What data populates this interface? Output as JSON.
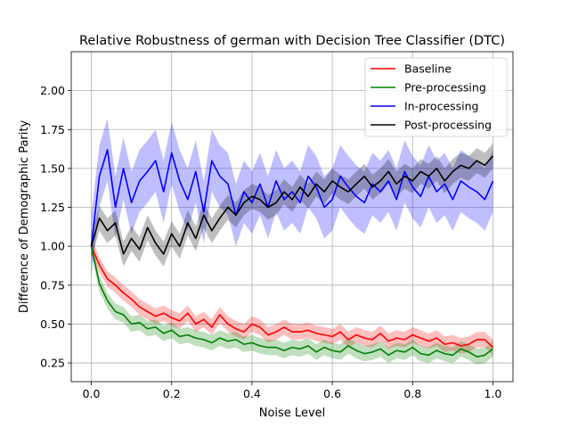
{
  "chart_data": {
    "type": "line",
    "title": "Relative Robustness of german with Decision Tree Classifier (DTC)",
    "xlabel": "Noise Level",
    "ylabel": "Difference of Demographic Parity",
    "xlim": [
      -0.05,
      1.05
    ],
    "ylim": [
      0.13,
      2.25
    ],
    "xticks": [
      0.0,
      0.2,
      0.4,
      0.6,
      0.8,
      1.0
    ],
    "xtick_labels": [
      "0.0",
      "0.2",
      "0.4",
      "0.6",
      "0.8",
      "1.0"
    ],
    "yticks": [
      0.25,
      0.5,
      0.75,
      1.0,
      1.25,
      1.5,
      1.75,
      2.0
    ],
    "ytick_labels": [
      "0.25",
      "0.50",
      "0.75",
      "1.00",
      "1.25",
      "1.50",
      "1.75",
      "2.00"
    ],
    "grid": true,
    "legend_position": "top-right",
    "x": [
      0.0,
      0.02,
      0.04,
      0.06,
      0.08,
      0.1,
      0.12,
      0.14,
      0.16,
      0.18,
      0.2,
      0.22,
      0.24,
      0.26,
      0.28,
      0.3,
      0.32,
      0.34,
      0.36,
      0.38,
      0.4,
      0.42,
      0.44,
      0.46,
      0.48,
      0.5,
      0.52,
      0.54,
      0.56,
      0.58,
      0.6,
      0.62,
      0.64,
      0.66,
      0.68,
      0.7,
      0.72,
      0.74,
      0.76,
      0.78,
      0.8,
      0.82,
      0.84,
      0.86,
      0.88,
      0.9,
      0.92,
      0.94,
      0.96,
      0.98,
      1.0
    ],
    "series": [
      {
        "name": "Baseline",
        "color": "#ff0000",
        "band": 0.05,
        "values": [
          1.0,
          0.88,
          0.79,
          0.75,
          0.7,
          0.66,
          0.61,
          0.58,
          0.55,
          0.57,
          0.54,
          0.52,
          0.57,
          0.5,
          0.53,
          0.48,
          0.56,
          0.5,
          0.47,
          0.45,
          0.5,
          0.48,
          0.43,
          0.45,
          0.48,
          0.45,
          0.45,
          0.46,
          0.44,
          0.43,
          0.42,
          0.45,
          0.4,
          0.43,
          0.41,
          0.4,
          0.44,
          0.39,
          0.41,
          0.4,
          0.43,
          0.41,
          0.39,
          0.41,
          0.37,
          0.38,
          0.36,
          0.37,
          0.4,
          0.4,
          0.35
        ]
      },
      {
        "name": "Pre-processing",
        "color": "#008000",
        "band": 0.05,
        "values": [
          1.0,
          0.76,
          0.65,
          0.58,
          0.56,
          0.5,
          0.51,
          0.47,
          0.48,
          0.44,
          0.46,
          0.42,
          0.43,
          0.41,
          0.4,
          0.38,
          0.41,
          0.39,
          0.4,
          0.37,
          0.38,
          0.36,
          0.35,
          0.35,
          0.33,
          0.35,
          0.34,
          0.36,
          0.32,
          0.35,
          0.33,
          0.32,
          0.36,
          0.33,
          0.31,
          0.32,
          0.34,
          0.3,
          0.33,
          0.32,
          0.35,
          0.31,
          0.3,
          0.33,
          0.31,
          0.3,
          0.34,
          0.32,
          0.29,
          0.3,
          0.34
        ]
      },
      {
        "name": "In-processing",
        "color": "#0000ff",
        "band": 0.2,
        "values": [
          1.0,
          1.45,
          1.62,
          1.25,
          1.5,
          1.28,
          1.42,
          1.48,
          1.55,
          1.35,
          1.6,
          1.42,
          1.3,
          1.48,
          1.22,
          1.55,
          1.45,
          1.4,
          1.2,
          1.35,
          1.28,
          1.4,
          1.25,
          1.42,
          1.3,
          1.35,
          1.28,
          1.45,
          1.38,
          1.25,
          1.3,
          1.45,
          1.38,
          1.32,
          1.28,
          1.4,
          1.35,
          1.42,
          1.3,
          1.48,
          1.38,
          1.32,
          1.45,
          1.35,
          1.4,
          1.3,
          1.42,
          1.38,
          1.35,
          1.3,
          1.42
        ]
      },
      {
        "name": "Post-processing",
        "color": "#000000",
        "band": 0.08,
        "values": [
          1.0,
          1.18,
          1.1,
          1.15,
          0.95,
          1.05,
          0.98,
          1.12,
          1.02,
          0.95,
          1.08,
          1.0,
          1.15,
          1.05,
          1.2,
          1.1,
          1.18,
          1.25,
          1.2,
          1.28,
          1.32,
          1.3,
          1.25,
          1.28,
          1.35,
          1.3,
          1.38,
          1.32,
          1.4,
          1.35,
          1.42,
          1.38,
          1.35,
          1.4,
          1.45,
          1.38,
          1.42,
          1.48,
          1.4,
          1.45,
          1.42,
          1.48,
          1.45,
          1.5,
          1.42,
          1.48,
          1.52,
          1.5,
          1.55,
          1.52,
          1.58
        ]
      }
    ]
  }
}
